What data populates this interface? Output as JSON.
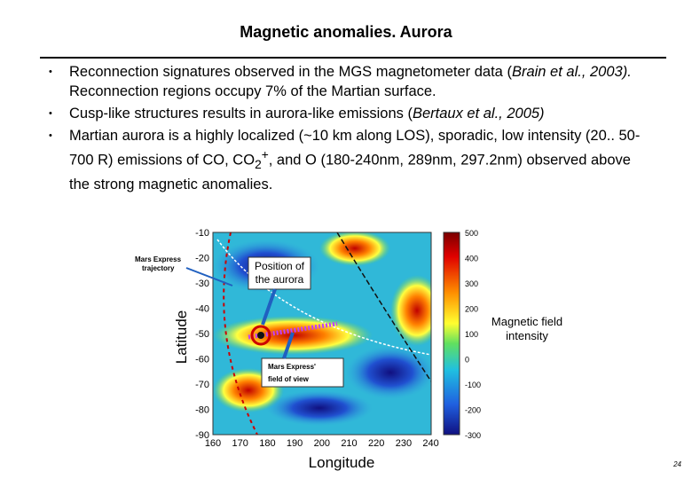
{
  "header": {
    "title": "Magnetic anomalies. Aurora"
  },
  "bullets": [
    [
      "Reconnection signatures observed in the MGS magnetometer data (",
      "Brain et al., 2003).",
      " Reconnection regions occupy 7% of the Martian surface."
    ],
    [
      "Cusp-like structures results in aurora-like emissions (",
      "Bertaux et al., 2005)"
    ],
    [
      "Martian aurora is a highly localized (~10 km along LOS), sporadic, low intensity (20.. 50-700 R) emissions of CO, CO",
      "2",
      "+",
      ", and O (180-240nm, 289nm, 297.2nm) observed above the strong magnetic anomalies."
    ]
  ],
  "figure": {
    "y_label": "Latitude",
    "x_label": "Longitude",
    "y_ticks": [
      "-10",
      "-20",
      "-30",
      "-40",
      "-50",
      "-60",
      "-70",
      "-80",
      "-90"
    ],
    "x_ticks": [
      "160",
      "170",
      "180",
      "190",
      "200",
      "210",
      "220",
      "230",
      "240"
    ],
    "colorbar_ticks": [
      "500",
      "400",
      "300",
      "200",
      "100",
      "0",
      "-100",
      "-200",
      "-300"
    ],
    "colorbar_label": [
      "Magnetic field",
      "intensity"
    ],
    "trajectory_label": [
      "Mars Express",
      "trajectory"
    ],
    "aurora_label": [
      "Position of",
      "the aurora"
    ],
    "fov_label": [
      "Mars Express'",
      "field of view"
    ]
  },
  "page_number": "24"
}
